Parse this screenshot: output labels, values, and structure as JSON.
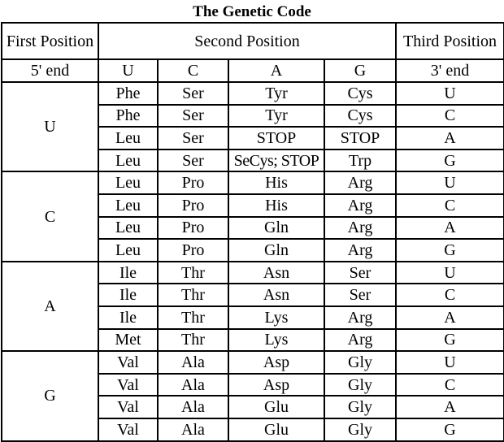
{
  "title": "The Genetic Code",
  "headers": {
    "first": "First Position",
    "second": "Second Position",
    "third": "Third Position",
    "five_end": "5' end",
    "second_bases": [
      "U",
      "C",
      "A",
      "G"
    ],
    "three_end": "3' end"
  },
  "groups": [
    {
      "first": "U",
      "rows": [
        [
          "Phe",
          "Ser",
          "Tyr",
          "Cys",
          "U"
        ],
        [
          "Phe",
          "Ser",
          "Tyr",
          "Cys",
          "C"
        ],
        [
          "Leu",
          "Ser",
          "STOP",
          "STOP",
          "A"
        ],
        [
          "Leu",
          "Ser",
          "SeCys; STOP",
          "Trp",
          "G"
        ]
      ]
    },
    {
      "first": "C",
      "rows": [
        [
          "Leu",
          "Pro",
          "His",
          "Arg",
          "U"
        ],
        [
          "Leu",
          "Pro",
          "His",
          "Arg",
          "C"
        ],
        [
          "Leu",
          "Pro",
          "Gln",
          "Arg",
          "A"
        ],
        [
          "Leu",
          "Pro",
          "Gln",
          "Arg",
          "G"
        ]
      ]
    },
    {
      "first": "A",
      "rows": [
        [
          "Ile",
          "Thr",
          "Asn",
          "Ser",
          "U"
        ],
        [
          "Ile",
          "Thr",
          "Asn",
          "Ser",
          "C"
        ],
        [
          "Ile",
          "Thr",
          "Lys",
          "Arg",
          "A"
        ],
        [
          "Met",
          "Thr",
          "Lys",
          "Arg",
          "G"
        ]
      ]
    },
    {
      "first": "G",
      "rows": [
        [
          "Val",
          "Ala",
          "Asp",
          "Gly",
          "U"
        ],
        [
          "Val",
          "Ala",
          "Asp",
          "Gly",
          "C"
        ],
        [
          "Val",
          "Ala",
          "Glu",
          "Gly",
          "A"
        ],
        [
          "Val",
          "Ala",
          "Glu",
          "Gly",
          "G"
        ]
      ]
    }
  ]
}
